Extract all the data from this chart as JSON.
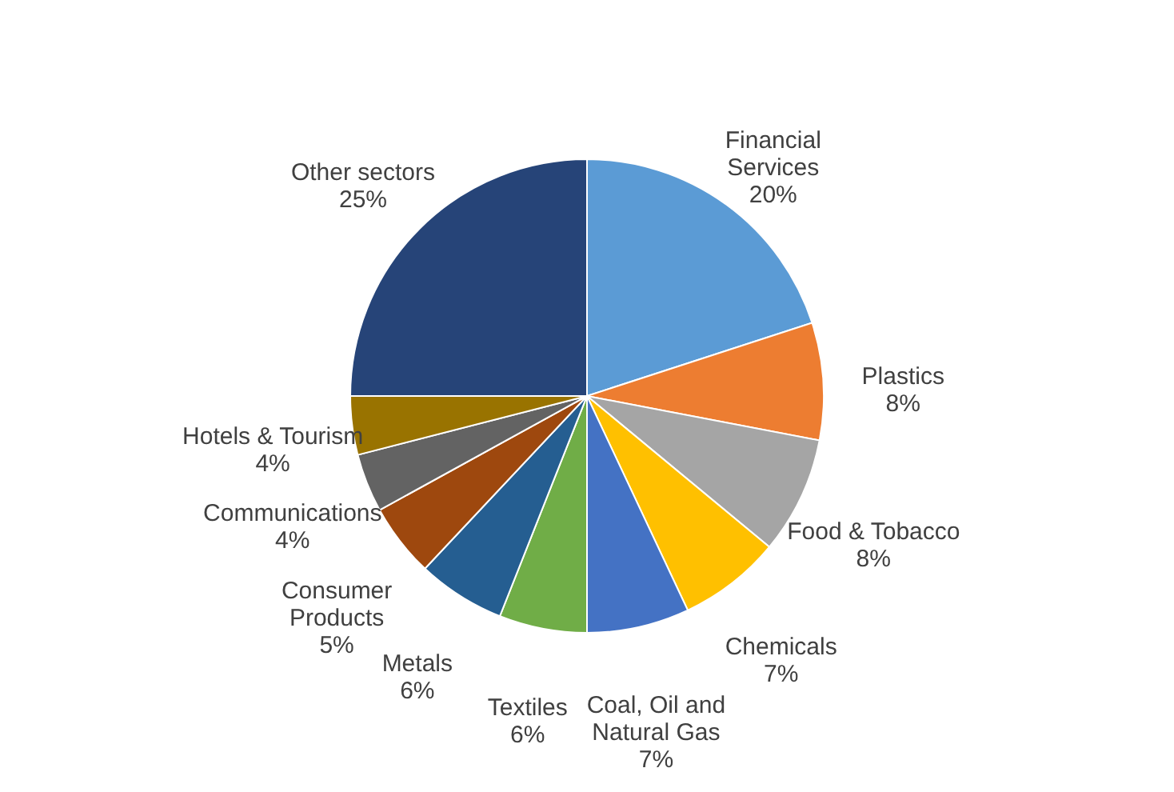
{
  "chart_data": {
    "type": "pie",
    "categories": [
      "Financial Services",
      "Plastics",
      "Food & Tobacco",
      "Chemicals",
      "Coal, Oil and Natural Gas",
      "Textiles",
      "Metals",
      "Consumer Products",
      "Communications",
      "Hotels & Tourism",
      "Other sectors"
    ],
    "values": [
      20,
      8,
      8,
      7,
      7,
      6,
      6,
      5,
      4,
      4,
      25
    ],
    "value_labels": [
      "20%",
      "8%",
      "8%",
      "7%",
      "7%",
      "6%",
      "6%",
      "5%",
      "4%",
      "4%",
      "25%"
    ],
    "colors": [
      "#5b9bd5",
      "#ed7d31",
      "#a5a5a5",
      "#ffc000",
      "#4472c4",
      "#70ad47",
      "#255e91",
      "#9e480e",
      "#636363",
      "#997300",
      "#264478"
    ]
  }
}
